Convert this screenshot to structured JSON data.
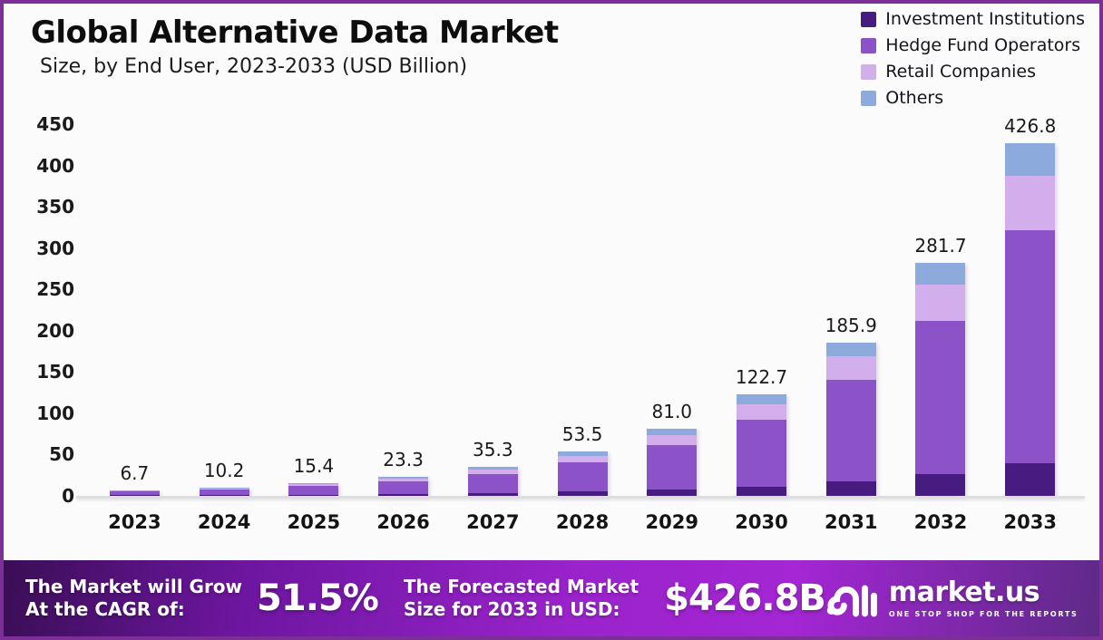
{
  "chart_data": {
    "type": "bar",
    "stacked": true,
    "title": "Global Alternative Data Market",
    "subtitle": "Size, by End User, 2023-2033 (USD Billion)",
    "categories": [
      "2023",
      "2024",
      "2025",
      "2026",
      "2027",
      "2028",
      "2029",
      "2030",
      "2031",
      "2032",
      "2033"
    ],
    "series": [
      {
        "name": "Investment Institutions",
        "color": "#471c80",
        "values": [
          0.6,
          0.9,
          1.4,
          2.2,
          3.3,
          5.0,
          7.5,
          11.4,
          17.3,
          26.2,
          39.7
        ]
      },
      {
        "name": "Hedge Fund Operators",
        "color": "#8c52c8",
        "values": [
          4.4,
          6.7,
          10.2,
          15.4,
          23.3,
          35.3,
          53.5,
          81.0,
          122.7,
          185.9,
          281.7
        ]
      },
      {
        "name": "Retail Companies",
        "color": "#d2aeec",
        "values": [
          1.0,
          1.6,
          2.4,
          3.6,
          5.5,
          8.3,
          12.6,
          19.0,
          28.8,
          43.6,
          66.2
        ]
      },
      {
        "name": "Others",
        "color": "#8cabdc",
        "values": [
          0.7,
          1.0,
          1.4,
          2.1,
          3.2,
          4.9,
          7.4,
          11.3,
          17.1,
          26.0,
          39.2
        ]
      }
    ],
    "totals": [
      "6.7",
      "10.2",
      "15.4",
      "23.3",
      "35.3",
      "53.5",
      "81.0",
      "122.7",
      "185.9",
      "281.7",
      "426.8"
    ],
    "ylim": [
      0,
      450
    ],
    "yticks": [
      0,
      50,
      100,
      150,
      200,
      250,
      300,
      350,
      400,
      450
    ],
    "grid": false,
    "legend_position": "top-right"
  },
  "footer": {
    "cagr_line1": "The Market will Grow",
    "cagr_line2": "At the CAGR of:",
    "cagr_value": "51.5%",
    "forecast_line1": "The Forecasted Market",
    "forecast_line2": "Size for 2033 in USD:",
    "forecast_value": "$426.8B",
    "brand": "market.us",
    "brand_tagline": "ONE STOP SHOP FOR THE REPORTS"
  },
  "colors": {
    "page_border": "#7c2f96",
    "background": "#fcfbfc",
    "banner_gradient": [
      "#3a0e55",
      "#6d16a0",
      "#a426d4",
      "#5e2a87"
    ]
  }
}
